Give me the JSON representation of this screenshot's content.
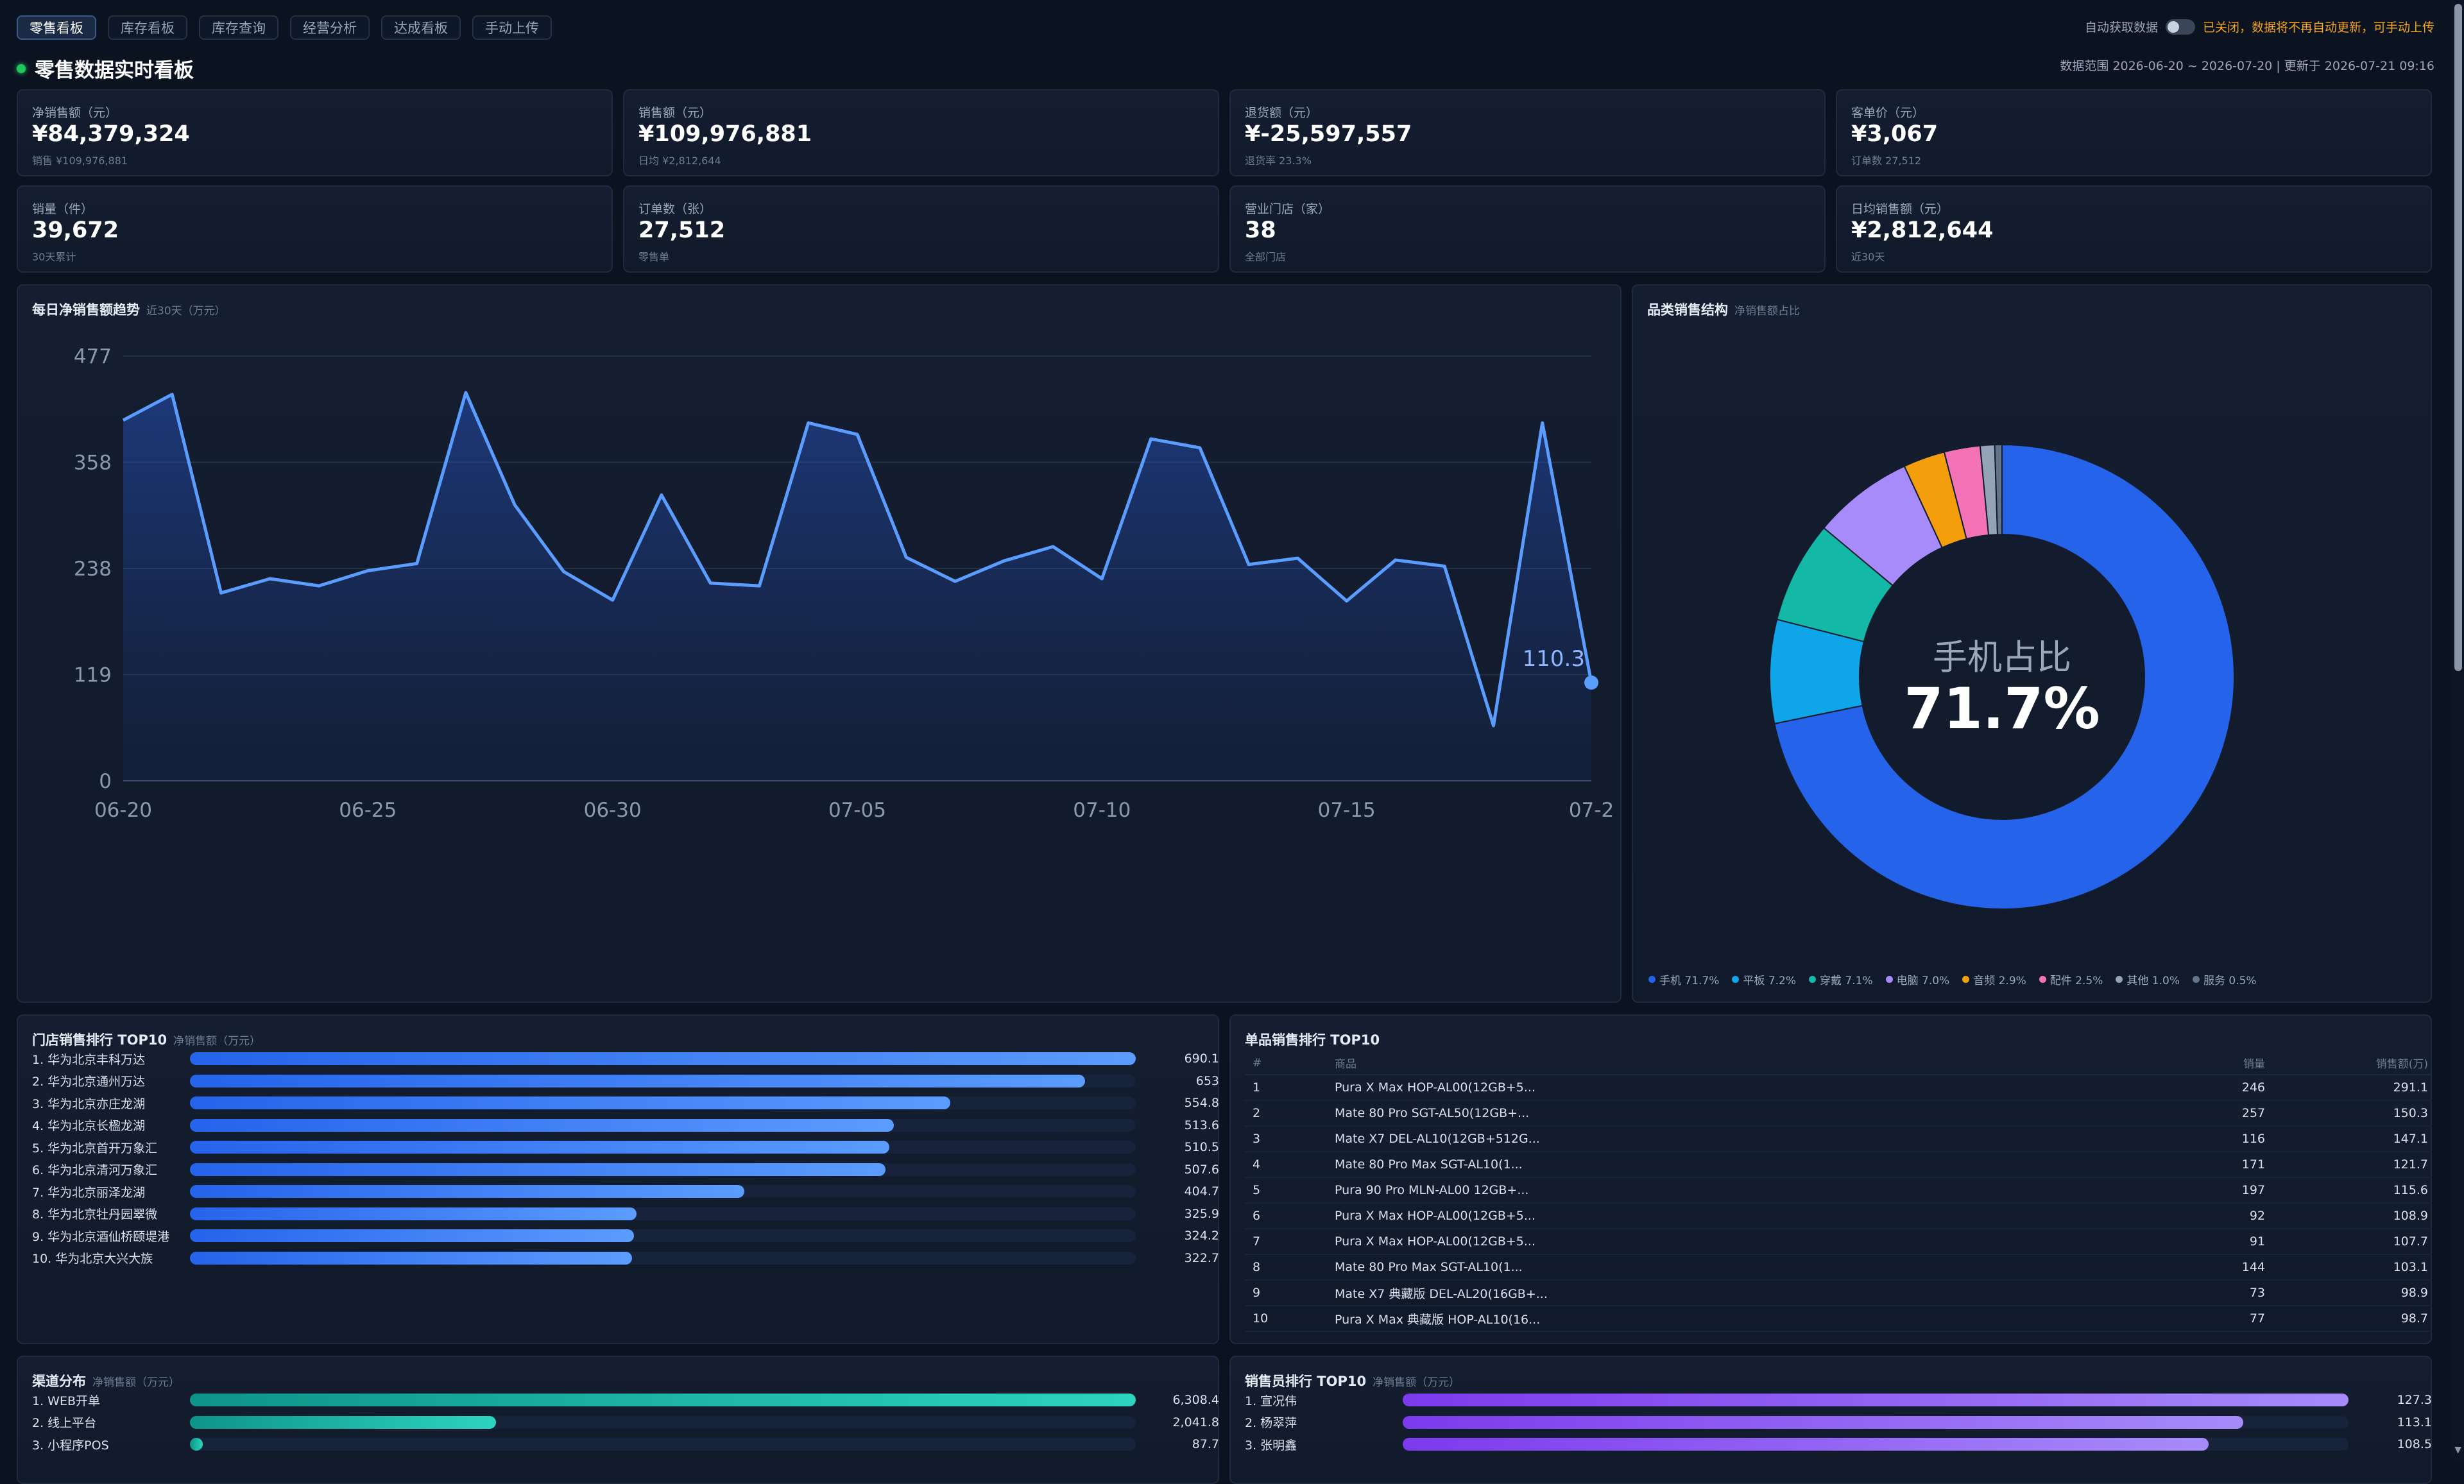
{
  "tabs": [
    "零售看板",
    "库存看板",
    "库存查询",
    "经营分析",
    "达成看板",
    "手动上传"
  ],
  "auto_fetch": {
    "label": "自动获取数据",
    "note": "已关闭，数据将不再自动更新，可手动上传"
  },
  "page_title": "零售数据实时看板",
  "range_info": "数据范围 2026-06-20 ~ 2026-07-20  |  更新于 2026-07-21 09:16",
  "kpis": [
    {
      "label": "净销售额（元）",
      "value": "¥84,379,324",
      "sub": "销售 ¥109,976,881"
    },
    {
      "label": "销售额（元）",
      "value": "¥109,976,881",
      "sub": "日均 ¥2,812,644"
    },
    {
      "label": "退货额（元）",
      "value": "¥-25,597,557",
      "sub": "退货率 23.3%"
    },
    {
      "label": "客单价（元）",
      "value": "¥3,067",
      "sub": "订单数 27,512"
    },
    {
      "label": "销量（件）",
      "value": "39,672",
      "sub": "30天累计"
    },
    {
      "label": "订单数（张）",
      "value": "27,512",
      "sub": "零售单"
    },
    {
      "label": "营业门店（家）",
      "value": "38",
      "sub": "全部门店"
    },
    {
      "label": "日均销售额（元）",
      "value": "¥2,812,644",
      "sub": "近30天"
    }
  ],
  "trend": {
    "title": "每日净销售额趋势",
    "subtitle": "近30天（万元）",
    "end_label": "110.3"
  },
  "chart_data": {
    "type": "area",
    "x": [
      "06-20",
      "06-21",
      "06-22",
      "06-23",
      "06-24",
      "06-25",
      "06-26",
      "06-27",
      "06-28",
      "06-29",
      "06-30",
      "07-01",
      "07-02",
      "07-03",
      "07-04",
      "07-05",
      "07-06",
      "07-07",
      "07-08",
      "07-09",
      "07-10",
      "07-11",
      "07-12",
      "07-13",
      "07-14",
      "07-15",
      "07-16",
      "07-17",
      "07-18",
      "07-19",
      "07-20"
    ],
    "x_tick_labels": [
      "06-20",
      "06-25",
      "06-30",
      "07-05",
      "07-10",
      "07-15",
      "07-2"
    ],
    "x_tick_indices": [
      0,
      5,
      10,
      15,
      20,
      25,
      30
    ],
    "values": [
      405,
      434,
      211,
      227,
      219,
      236,
      244,
      436,
      310,
      235,
      203,
      321,
      222,
      219,
      402,
      389,
      251,
      224,
      247,
      263,
      227,
      384,
      374,
      243,
      250,
      202,
      248,
      241,
      62,
      402,
      110.3
    ],
    "ylim": [
      0,
      477
    ],
    "y_ticks": [
      "0",
      "119",
      "238",
      "358",
      "477"
    ],
    "grid": true,
    "color": "#5b9cff"
  },
  "category": {
    "title": "品类销售结构",
    "subtitle": "净销售额占比",
    "center_label": "手机占比",
    "center_value": "71.7%",
    "items": [
      {
        "name": "手机",
        "pct": 71.7,
        "label": "手机 71.7%",
        "color": "#2563eb"
      },
      {
        "name": "平板",
        "pct": 7.2,
        "label": "平板 7.2%",
        "color": "#0ea5e9"
      },
      {
        "name": "穿戴",
        "pct": 7.1,
        "label": "穿戴 7.1%",
        "color": "#14b8a6"
      },
      {
        "name": "电脑",
        "pct": 7.0,
        "label": "电脑 7.0%",
        "color": "#a78bfa"
      },
      {
        "name": "音频",
        "pct": 2.9,
        "label": "音频 2.9%",
        "color": "#f59e0b"
      },
      {
        "name": "配件",
        "pct": 2.5,
        "label": "配件 2.5%",
        "color": "#f472b6"
      },
      {
        "name": "其他",
        "pct": 1.0,
        "label": "其他 1.0%",
        "color": "#94a3b8"
      },
      {
        "name": "服务",
        "pct": 0.5,
        "label": "服务 0.5%",
        "color": "#64748b"
      }
    ]
  },
  "store_rank": {
    "title": "门店销售排行 TOP10",
    "subtitle": "净销售额（万元）",
    "max": 690.1,
    "items": [
      {
        "name": "1. 华为北京丰科万达",
        "value": 690.1,
        "label": "690.1"
      },
      {
        "name": "2. 华为北京通州万达",
        "value": 653,
        "label": "653"
      },
      {
        "name": "3. 华为北京亦庄龙湖",
        "value": 554.8,
        "label": "554.8"
      },
      {
        "name": "4. 华为北京长楹龙湖",
        "value": 513.6,
        "label": "513.6"
      },
      {
        "name": "5. 华为北京首开万象汇",
        "value": 510.5,
        "label": "510.5"
      },
      {
        "name": "6. 华为北京清河万象汇",
        "value": 507.6,
        "label": "507.6"
      },
      {
        "name": "7. 华为北京丽泽龙湖",
        "value": 404.7,
        "label": "404.7"
      },
      {
        "name": "8. 华为北京牡丹园翠微",
        "value": 325.9,
        "label": "325.9"
      },
      {
        "name": "9. 华为北京酒仙桥颐堤港",
        "value": 324.2,
        "label": "324.2"
      },
      {
        "name": "10. 华为北京大兴大族",
        "value": 322.7,
        "label": "322.7"
      }
    ]
  },
  "product_rank": {
    "title": "单品销售排行 TOP10",
    "headers": {
      "idx": "#",
      "name": "商品",
      "qty": "销量",
      "amount": "销售额(万)"
    },
    "rows": [
      {
        "idx": "1",
        "name": "Pura X Max HOP-AL00(12GB+5...",
        "qty": "246",
        "amount": "291.1"
      },
      {
        "idx": "2",
        "name": "Mate 80 Pro SGT-AL50(12GB+...",
        "qty": "257",
        "amount": "150.3"
      },
      {
        "idx": "3",
        "name": "Mate X7 DEL-AL10(12GB+512G...",
        "qty": "116",
        "amount": "147.1"
      },
      {
        "idx": "4",
        "name": "Mate 80 Pro Max SGT-AL10(1...",
        "qty": "171",
        "amount": "121.7"
      },
      {
        "idx": "5",
        "name": "Pura 90 Pro MLN-AL00 12GB+...",
        "qty": "197",
        "amount": "115.6"
      },
      {
        "idx": "6",
        "name": "Pura X Max HOP-AL00(12GB+5...",
        "qty": "92",
        "amount": "108.9"
      },
      {
        "idx": "7",
        "name": "Pura X Max HOP-AL00(12GB+5...",
        "qty": "91",
        "amount": "107.7"
      },
      {
        "idx": "8",
        "name": "Mate 80 Pro Max SGT-AL10(1...",
        "qty": "144",
        "amount": "103.1"
      },
      {
        "idx": "9",
        "name": "Mate X7 典藏版 DEL-AL20(16GB+...",
        "qty": "73",
        "amount": "98.9"
      },
      {
        "idx": "10",
        "name": "Pura X Max 典藏版 HOP-AL10(16...",
        "qty": "77",
        "amount": "98.7"
      }
    ]
  },
  "channel": {
    "title": "渠道分布",
    "subtitle": "净销售额（万元）",
    "max": 6308.4,
    "items": [
      {
        "name": "1. WEB开单",
        "value": 6308.4,
        "label": "6,308.4"
      },
      {
        "name": "2. 线上平台",
        "value": 2041.8,
        "label": "2,041.8"
      },
      {
        "name": "3. 小程序POS",
        "value": 87.7,
        "label": "87.7"
      }
    ]
  },
  "sales_rank": {
    "title": "销售员排行 TOP10",
    "subtitle": "净销售额（万元）",
    "max": 127.3,
    "items": [
      {
        "name": "1. 宣况伟",
        "value": 127.3,
        "label": "127.3"
      },
      {
        "name": "2. 杨翠萍",
        "value": 113.1,
        "label": "113.1"
      },
      {
        "name": "3. 张明鑫",
        "value": 108.5,
        "label": "108.5"
      }
    ]
  }
}
